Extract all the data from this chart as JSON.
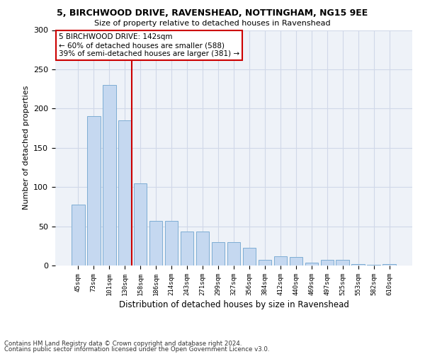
{
  "title1": "5, BIRCHWOOD DRIVE, RAVENSHEAD, NOTTINGHAM, NG15 9EE",
  "title2": "Size of property relative to detached houses in Ravenshead",
  "xlabel": "Distribution of detached houses by size in Ravenshead",
  "ylabel": "Number of detached properties",
  "categories": [
    "45sqm",
    "73sqm",
    "101sqm",
    "130sqm",
    "158sqm",
    "186sqm",
    "214sqm",
    "243sqm",
    "271sqm",
    "299sqm",
    "327sqm",
    "356sqm",
    "384sqm",
    "412sqm",
    "440sqm",
    "469sqm",
    "497sqm",
    "525sqm",
    "553sqm",
    "582sqm",
    "610sqm"
  ],
  "values": [
    78,
    190,
    230,
    185,
    105,
    57,
    57,
    43,
    43,
    30,
    30,
    23,
    7,
    12,
    11,
    4,
    7,
    7,
    2,
    1,
    2
  ],
  "bar_color": "#c5d8f0",
  "bar_edge_color": "#7eadd4",
  "grid_color": "#d0d8e8",
  "background_color": "#eef2f8",
  "vline_color": "#cc0000",
  "annotation_text": "5 BIRCHWOOD DRIVE: 142sqm\n← 60% of detached houses are smaller (588)\n39% of semi-detached houses are larger (381) →",
  "annotation_box_color": "#ffffff",
  "annotation_box_edge": "#cc0000",
  "footer1": "Contains HM Land Registry data © Crown copyright and database right 2024.",
  "footer2": "Contains public sector information licensed under the Open Government Licence v3.0.",
  "ylim": [
    0,
    300
  ],
  "yticks": [
    0,
    50,
    100,
    150,
    200,
    250,
    300
  ]
}
